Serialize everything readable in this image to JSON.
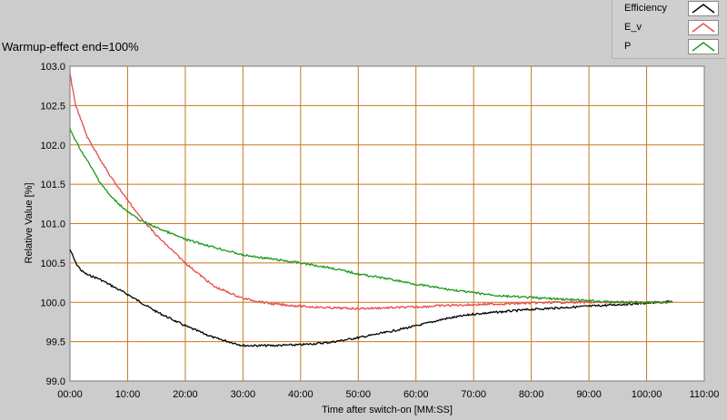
{
  "chart_data": {
    "type": "line",
    "title": "Warmup-effect end=100%",
    "xlabel": "Time after switch-on [MM:SS]",
    "ylabel": "Relative Value [%]",
    "xlim": [
      0,
      110
    ],
    "ylim": [
      99.0,
      103.0
    ],
    "x_ticks": [
      "00:00",
      "10:00",
      "20:00",
      "30:00",
      "40:00",
      "50:00",
      "60:00",
      "70:00",
      "80:00",
      "90:00",
      "100:00",
      "110:00"
    ],
    "y_ticks": [
      "99.0",
      "99.5",
      "100.0",
      "100.5",
      "101.0",
      "101.5",
      "102.0",
      "102.5",
      "103.0"
    ],
    "grid": true,
    "legend_position": "top-right",
    "series": [
      {
        "name": "Efficiency",
        "color": "#000000",
        "x": [
          0,
          1,
          2,
          3,
          5,
          7,
          10,
          15,
          20,
          25,
          30,
          35,
          40,
          45,
          50,
          55,
          60,
          65,
          70,
          75,
          80,
          85,
          90,
          95,
          100,
          104.5
        ],
        "y": [
          100.67,
          100.5,
          100.4,
          100.35,
          100.3,
          100.22,
          100.1,
          99.88,
          99.7,
          99.55,
          99.45,
          99.45,
          99.46,
          99.49,
          99.55,
          99.62,
          99.7,
          99.79,
          99.85,
          99.88,
          99.91,
          99.93,
          99.95,
          99.97,
          99.99,
          100.01
        ]
      },
      {
        "name": "E_v",
        "color": "#e84a4a",
        "x": [
          0,
          1,
          2,
          3,
          5,
          7,
          10,
          12,
          15,
          20,
          25,
          30,
          35,
          40,
          45,
          50,
          55,
          60,
          65,
          70,
          75,
          80,
          85,
          90,
          95,
          100,
          104.5
        ],
        "y": [
          102.9,
          102.5,
          102.3,
          102.1,
          101.85,
          101.6,
          101.3,
          101.1,
          100.85,
          100.5,
          100.2,
          100.05,
          99.98,
          99.95,
          99.93,
          99.92,
          99.93,
          99.94,
          99.96,
          99.97,
          99.98,
          99.99,
          100.0,
          100.0,
          100.0,
          100.0,
          100.0
        ]
      },
      {
        "name": "P",
        "color": "#1a9a1a",
        "x": [
          0,
          1,
          2,
          3,
          5,
          7,
          10,
          12,
          15,
          20,
          25,
          30,
          35,
          40,
          45,
          50,
          55,
          60,
          65,
          70,
          75,
          80,
          85,
          90,
          95,
          100,
          104.5
        ],
        "y": [
          102.2,
          102.05,
          101.92,
          101.8,
          101.55,
          101.35,
          101.15,
          101.05,
          100.95,
          100.8,
          100.7,
          100.6,
          100.55,
          100.5,
          100.44,
          100.36,
          100.3,
          100.23,
          100.17,
          100.12,
          100.08,
          100.06,
          100.04,
          100.02,
          100.0,
          100.0,
          100.0
        ]
      }
    ]
  }
}
